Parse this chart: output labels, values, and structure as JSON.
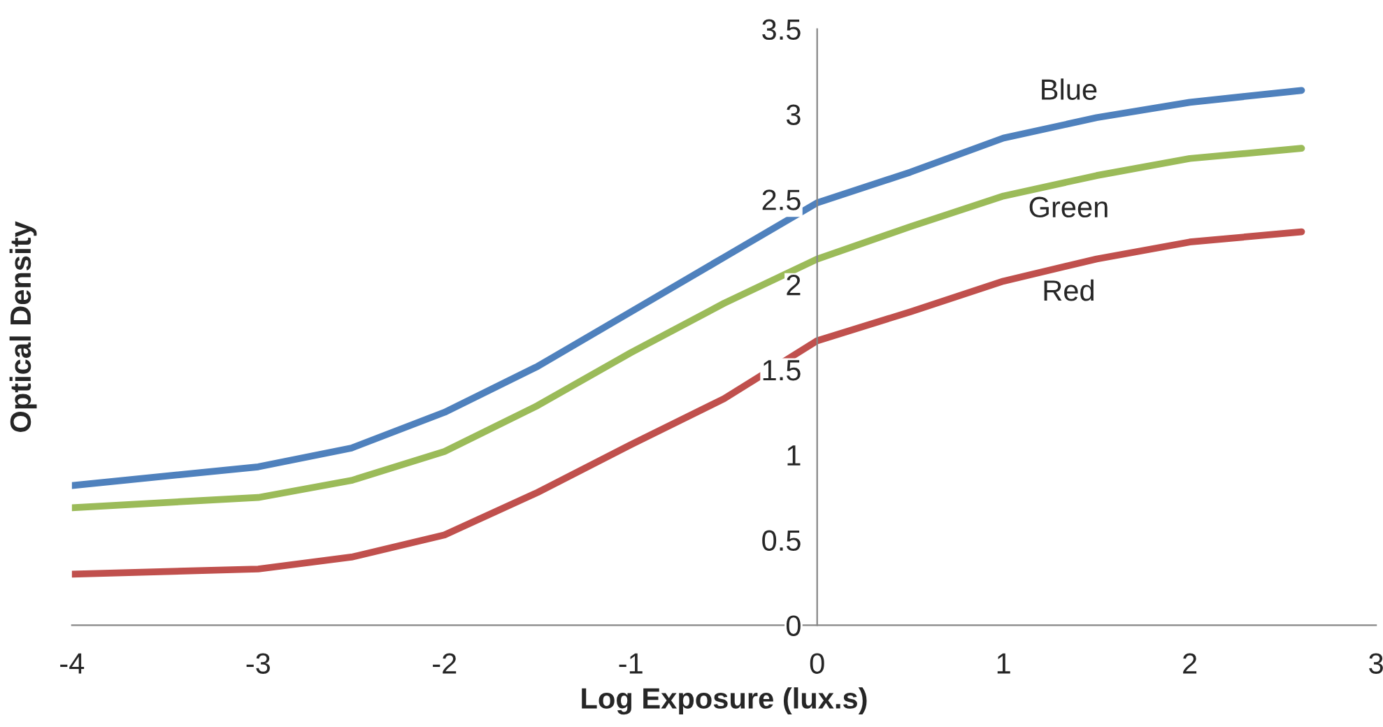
{
  "chart_data": {
    "type": "line",
    "xlabel": "Log Exposure (lux.s)",
    "ylabel": "Optical Density",
    "x": [
      -4,
      -3,
      -2.5,
      -2,
      -1.5,
      -1,
      -0.5,
      0,
      0.5,
      1,
      1.5,
      2,
      2.6
    ],
    "series": [
      {
        "name": "Blue",
        "color": "#4f81bd",
        "values": [
          0.82,
          0.93,
          1.04,
          1.25,
          1.52,
          1.84,
          2.16,
          2.48,
          2.66,
          2.86,
          2.98,
          3.07,
          3.14
        ]
      },
      {
        "name": "Green",
        "color": "#9bbb59",
        "values": [
          0.69,
          0.75,
          0.85,
          1.02,
          1.29,
          1.6,
          1.89,
          2.15,
          2.34,
          2.52,
          2.64,
          2.74,
          2.8
        ]
      },
      {
        "name": "Red",
        "color": "#c0504d",
        "values": [
          0.3,
          0.33,
          0.4,
          0.53,
          0.78,
          1.06,
          1.33,
          1.67,
          1.84,
          2.02,
          2.15,
          2.25,
          2.31
        ]
      }
    ],
    "xlim": [
      -4,
      3
    ],
    "xticks": [
      -4,
      -3,
      -2,
      -1,
      0,
      1,
      2,
      3
    ],
    "ylim": [
      0,
      3.5
    ],
    "yticks": [
      0,
      0.5,
      1,
      1.5,
      2,
      2.5,
      3,
      3.5
    ],
    "grid": false,
    "legend": false,
    "marker": "none",
    "line_style": "solid"
  }
}
